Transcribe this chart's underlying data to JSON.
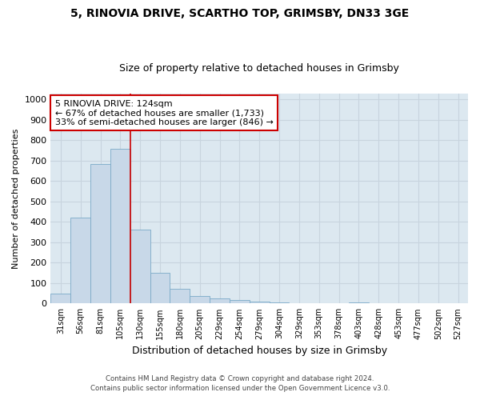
{
  "title1": "5, RINOVIA DRIVE, SCARTHO TOP, GRIMSBY, DN33 3GE",
  "title2": "Size of property relative to detached houses in Grimsby",
  "xlabel": "Distribution of detached houses by size in Grimsby",
  "ylabel": "Number of detached properties",
  "bar_labels": [
    "31sqm",
    "56sqm",
    "81sqm",
    "105sqm",
    "130sqm",
    "155sqm",
    "180sqm",
    "205sqm",
    "229sqm",
    "254sqm",
    "279sqm",
    "304sqm",
    "329sqm",
    "353sqm",
    "378sqm",
    "403sqm",
    "428sqm",
    "453sqm",
    "477sqm",
    "502sqm",
    "527sqm"
  ],
  "bar_values": [
    47,
    420,
    685,
    757,
    362,
    150,
    70,
    38,
    25,
    17,
    10,
    5,
    2,
    0,
    0,
    5,
    0,
    0,
    0,
    0,
    0
  ],
  "bar_color": "#c8d8e8",
  "bar_edge_color": "#7aaac8",
  "vline_x": 3.5,
  "vline_color": "#cc0000",
  "annotation_text": "5 RINOVIA DRIVE: 124sqm\n← 67% of detached houses are smaller (1,733)\n33% of semi-detached houses are larger (846) →",
  "annotation_box_color": "#ffffff",
  "annotation_box_edge": "#cc0000",
  "ylim": [
    0,
    1030
  ],
  "yticks": [
    0,
    100,
    200,
    300,
    400,
    500,
    600,
    700,
    800,
    900,
    1000
  ],
  "grid_color": "#c8d4de",
  "bg_color": "#dce8f0",
  "fig_bg_color": "#ffffff",
  "footer1": "Contains HM Land Registry data © Crown copyright and database right 2024.",
  "footer2": "Contains public sector information licensed under the Open Government Licence v3.0."
}
